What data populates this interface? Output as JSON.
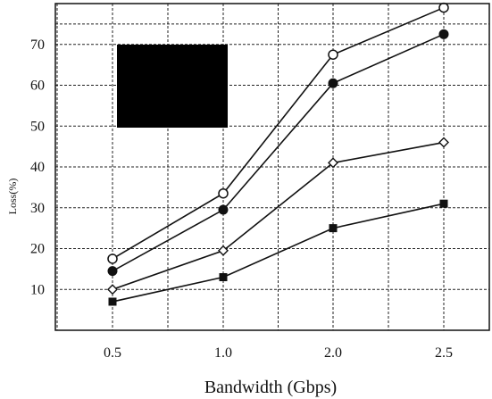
{
  "chart_data": {
    "type": "line",
    "xlabel": "Bandwidth (Gbps)",
    "ylabel": "Loss(%)",
    "categories": [
      "0.5",
      "1.0",
      "2.0",
      "2.5"
    ],
    "y_ticks": [
      "10",
      "20",
      "30",
      "40",
      "50",
      "60",
      "70"
    ],
    "ylim": [
      0,
      80
    ],
    "grid": true,
    "legend": "black box upper-left (entries not legible)",
    "series": [
      {
        "marker": "open-circle",
        "values": [
          17.5,
          33.5,
          67.5,
          79
        ]
      },
      {
        "marker": "filled-circle",
        "values": [
          14.5,
          29.5,
          60.5,
          72.5
        ]
      },
      {
        "marker": "open-diamond",
        "values": [
          10,
          19.5,
          41,
          46
        ]
      },
      {
        "marker": "filled-square",
        "values": [
          7,
          13,
          25,
          31
        ]
      }
    ],
    "colors": {
      "line": "#111111",
      "grid": "#222222",
      "legend_box": "#000000"
    }
  }
}
